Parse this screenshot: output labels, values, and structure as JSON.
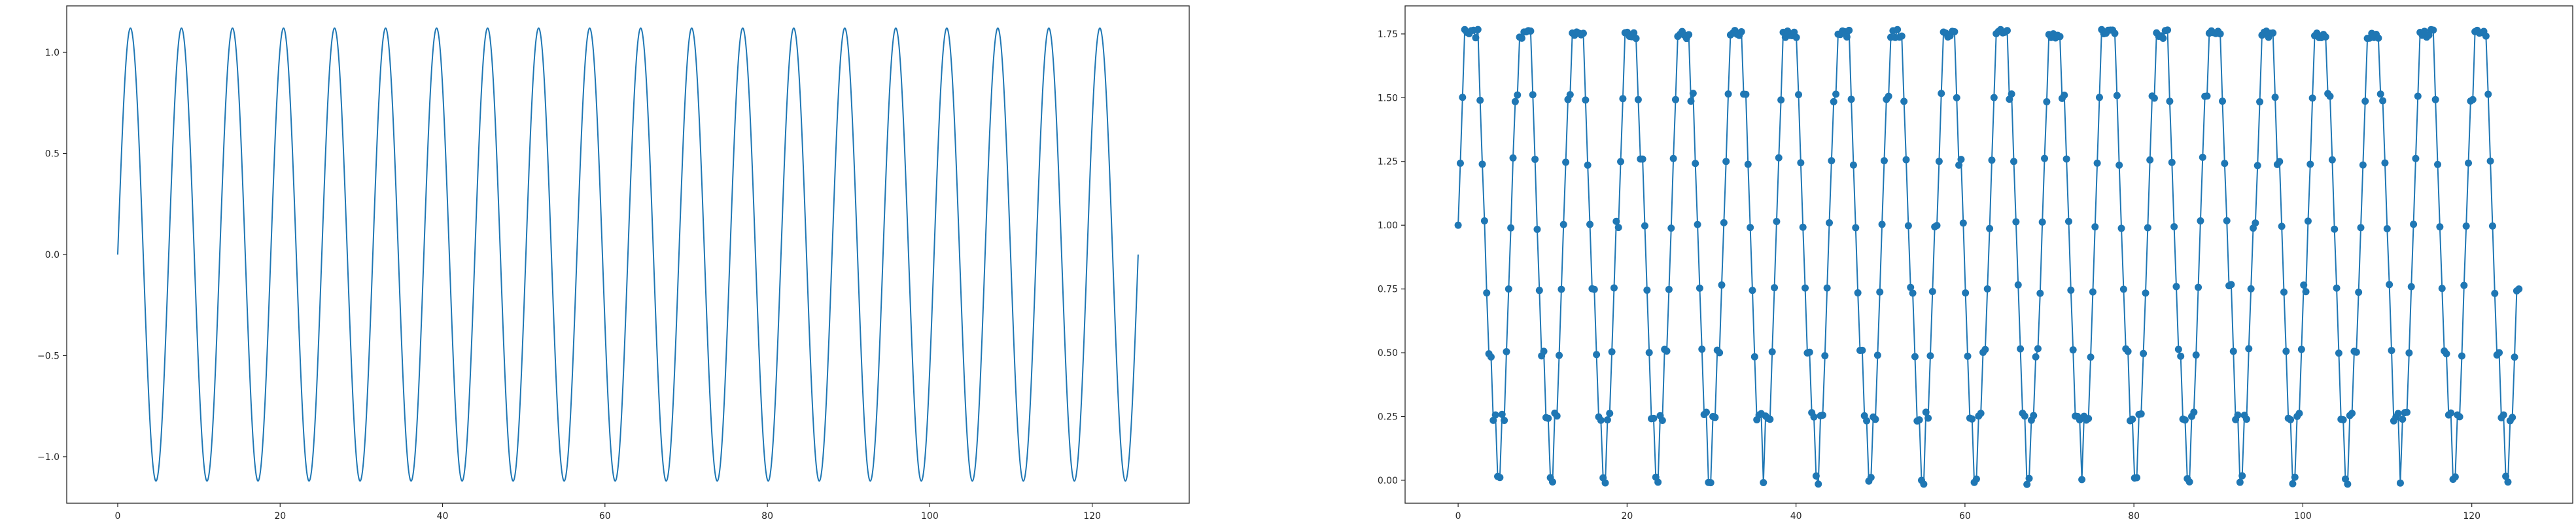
{
  "colors": {
    "series": "#1f77b4",
    "axis": "#262626",
    "background": "#ffffff"
  },
  "chart_data": [
    {
      "type": "line",
      "title": "",
      "xlabel": "",
      "ylabel": "",
      "grid": false,
      "xlim": [
        -6.28,
        131.95
      ],
      "ylim": [
        -1.23,
        1.23
      ],
      "x_ticks": [
        "0",
        "20",
        "40",
        "60",
        "80",
        "100",
        "120"
      ],
      "y_ticks": [
        "−1.0",
        "−0.5",
        "0.0",
        "0.5",
        "1.0"
      ],
      "series": [
        {
          "style": "solid-line",
          "function": "y = 1.12 * sin(x), x from 0 to 125.66 (20 full periods)",
          "amplitude": 1.12,
          "period": 6.283,
          "x_start": 0,
          "x_end": 125.66,
          "cycles": 20
        }
      ]
    },
    {
      "type": "line",
      "title": "",
      "xlabel": "",
      "ylabel": "",
      "grid": false,
      "xlim": [
        -6.28,
        131.95
      ],
      "ylim": [
        -0.09,
        1.86
      ],
      "x_ticks": [
        "0",
        "20",
        "40",
        "60",
        "80",
        "100",
        "120"
      ],
      "y_ticks": [
        "0.00",
        "0.25",
        "0.50",
        "0.75",
        "1.00",
        "1.25",
        "1.50",
        "1.75"
      ],
      "series": [
        {
          "style": "line-with-circle-markers",
          "description": "quantized sine samples: values snap to 0.25 steps between 0.00 and 1.75, centred at 1.00, with small jitter; 20 cycles",
          "levels": [
            0.0,
            0.25,
            0.5,
            0.75,
            1.0,
            1.25,
            1.5,
            1.75
          ],
          "period": 6.283,
          "x_start": 0,
          "x_end": 125.66,
          "start_value": 1.0,
          "end_value": 0.75
        }
      ]
    }
  ]
}
